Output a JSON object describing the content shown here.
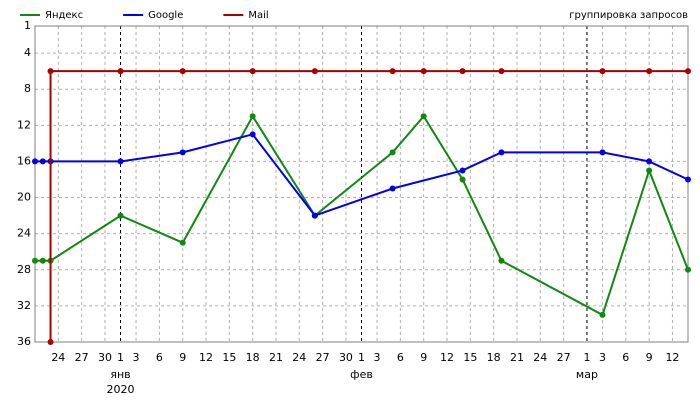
{
  "chart_data": {
    "type": "line",
    "annotation": "группировка запросов",
    "ylim": [
      1,
      36
    ],
    "y_inverted": true,
    "yticks": [
      1,
      4,
      8,
      12,
      16,
      20,
      24,
      28,
      32,
      36
    ],
    "xlim": [
      "2019-12-21",
      "2020-03-14"
    ],
    "xticks": [
      {
        "value": "2019-12-24",
        "label": "24"
      },
      {
        "value": "2019-12-27",
        "label": "27"
      },
      {
        "value": "2019-12-30",
        "label": "30"
      },
      {
        "value": "2020-01-01",
        "label": "1"
      },
      {
        "value": "2020-01-03",
        "label": "3"
      },
      {
        "value": "2020-01-06",
        "label": "6"
      },
      {
        "value": "2020-01-09",
        "label": "9"
      },
      {
        "value": "2020-01-12",
        "label": "12"
      },
      {
        "value": "2020-01-15",
        "label": "15"
      },
      {
        "value": "2020-01-18",
        "label": "18"
      },
      {
        "value": "2020-01-21",
        "label": "21"
      },
      {
        "value": "2020-01-24",
        "label": "24"
      },
      {
        "value": "2020-01-27",
        "label": "27"
      },
      {
        "value": "2020-01-30",
        "label": "30"
      },
      {
        "value": "2020-02-01",
        "label": "1"
      },
      {
        "value": "2020-02-03",
        "label": "3"
      },
      {
        "value": "2020-02-06",
        "label": "6"
      },
      {
        "value": "2020-02-09",
        "label": "9"
      },
      {
        "value": "2020-02-12",
        "label": "12"
      },
      {
        "value": "2020-02-15",
        "label": "15"
      },
      {
        "value": "2020-02-18",
        "label": "18"
      },
      {
        "value": "2020-02-21",
        "label": "21"
      },
      {
        "value": "2020-02-24",
        "label": "24"
      },
      {
        "value": "2020-02-27",
        "label": "27"
      },
      {
        "value": "2020-03-01",
        "label": "1"
      },
      {
        "value": "2020-03-03",
        "label": "3"
      },
      {
        "value": "2020-03-06",
        "label": "6"
      },
      {
        "value": "2020-03-09",
        "label": "9"
      },
      {
        "value": "2020-03-12",
        "label": "12"
      }
    ],
    "month_labels": [
      {
        "value": "2020-01-01",
        "label": "янв"
      },
      {
        "value": "2020-02-01",
        "label": "фев"
      },
      {
        "value": "2020-03-01",
        "label": "мар"
      }
    ],
    "year_label": {
      "value": "2020-01-01",
      "label": "2020"
    },
    "grid": true,
    "series": [
      {
        "name": "Яндекс",
        "color": "#118811",
        "x": [
          "2019-12-21",
          "2019-12-22",
          "2019-12-23",
          "2020-01-01",
          "2020-01-09",
          "2020-01-18",
          "2020-01-26",
          "2020-02-05",
          "2020-02-09",
          "2020-02-14",
          "2020-02-19",
          "2020-03-03",
          "2020-03-09",
          "2020-03-14"
        ],
        "values": [
          27,
          27,
          27,
          22,
          25,
          11,
          22,
          15,
          11,
          18,
          27,
          33,
          17,
          28
        ]
      },
      {
        "name": "Google",
        "color": "#0000ee",
        "x": [
          "2019-12-21",
          "2019-12-22",
          "2019-12-23",
          "2020-01-01",
          "2020-01-09",
          "2020-01-18",
          "2020-01-26",
          "2020-02-05",
          "2020-02-14",
          "2020-02-19",
          "2020-03-03",
          "2020-03-09",
          "2020-03-14"
        ],
        "values": [
          16,
          16,
          16,
          16,
          15,
          13,
          22,
          19,
          17,
          15,
          15,
          16,
          18
        ]
      },
      {
        "name": "Mail",
        "color": "#aa0000",
        "x": [
          "2019-12-23",
          "2019-12-23",
          "2020-01-01",
          "2020-01-09",
          "2020-01-18",
          "2020-01-26",
          "2020-02-05",
          "2020-02-09",
          "2020-02-14",
          "2020-02-19",
          "2020-03-03",
          "2020-03-09",
          "2020-03-14"
        ],
        "values": [
          36,
          6,
          6,
          6,
          6,
          6,
          6,
          6,
          6,
          6,
          6,
          6,
          6
        ]
      }
    ]
  }
}
